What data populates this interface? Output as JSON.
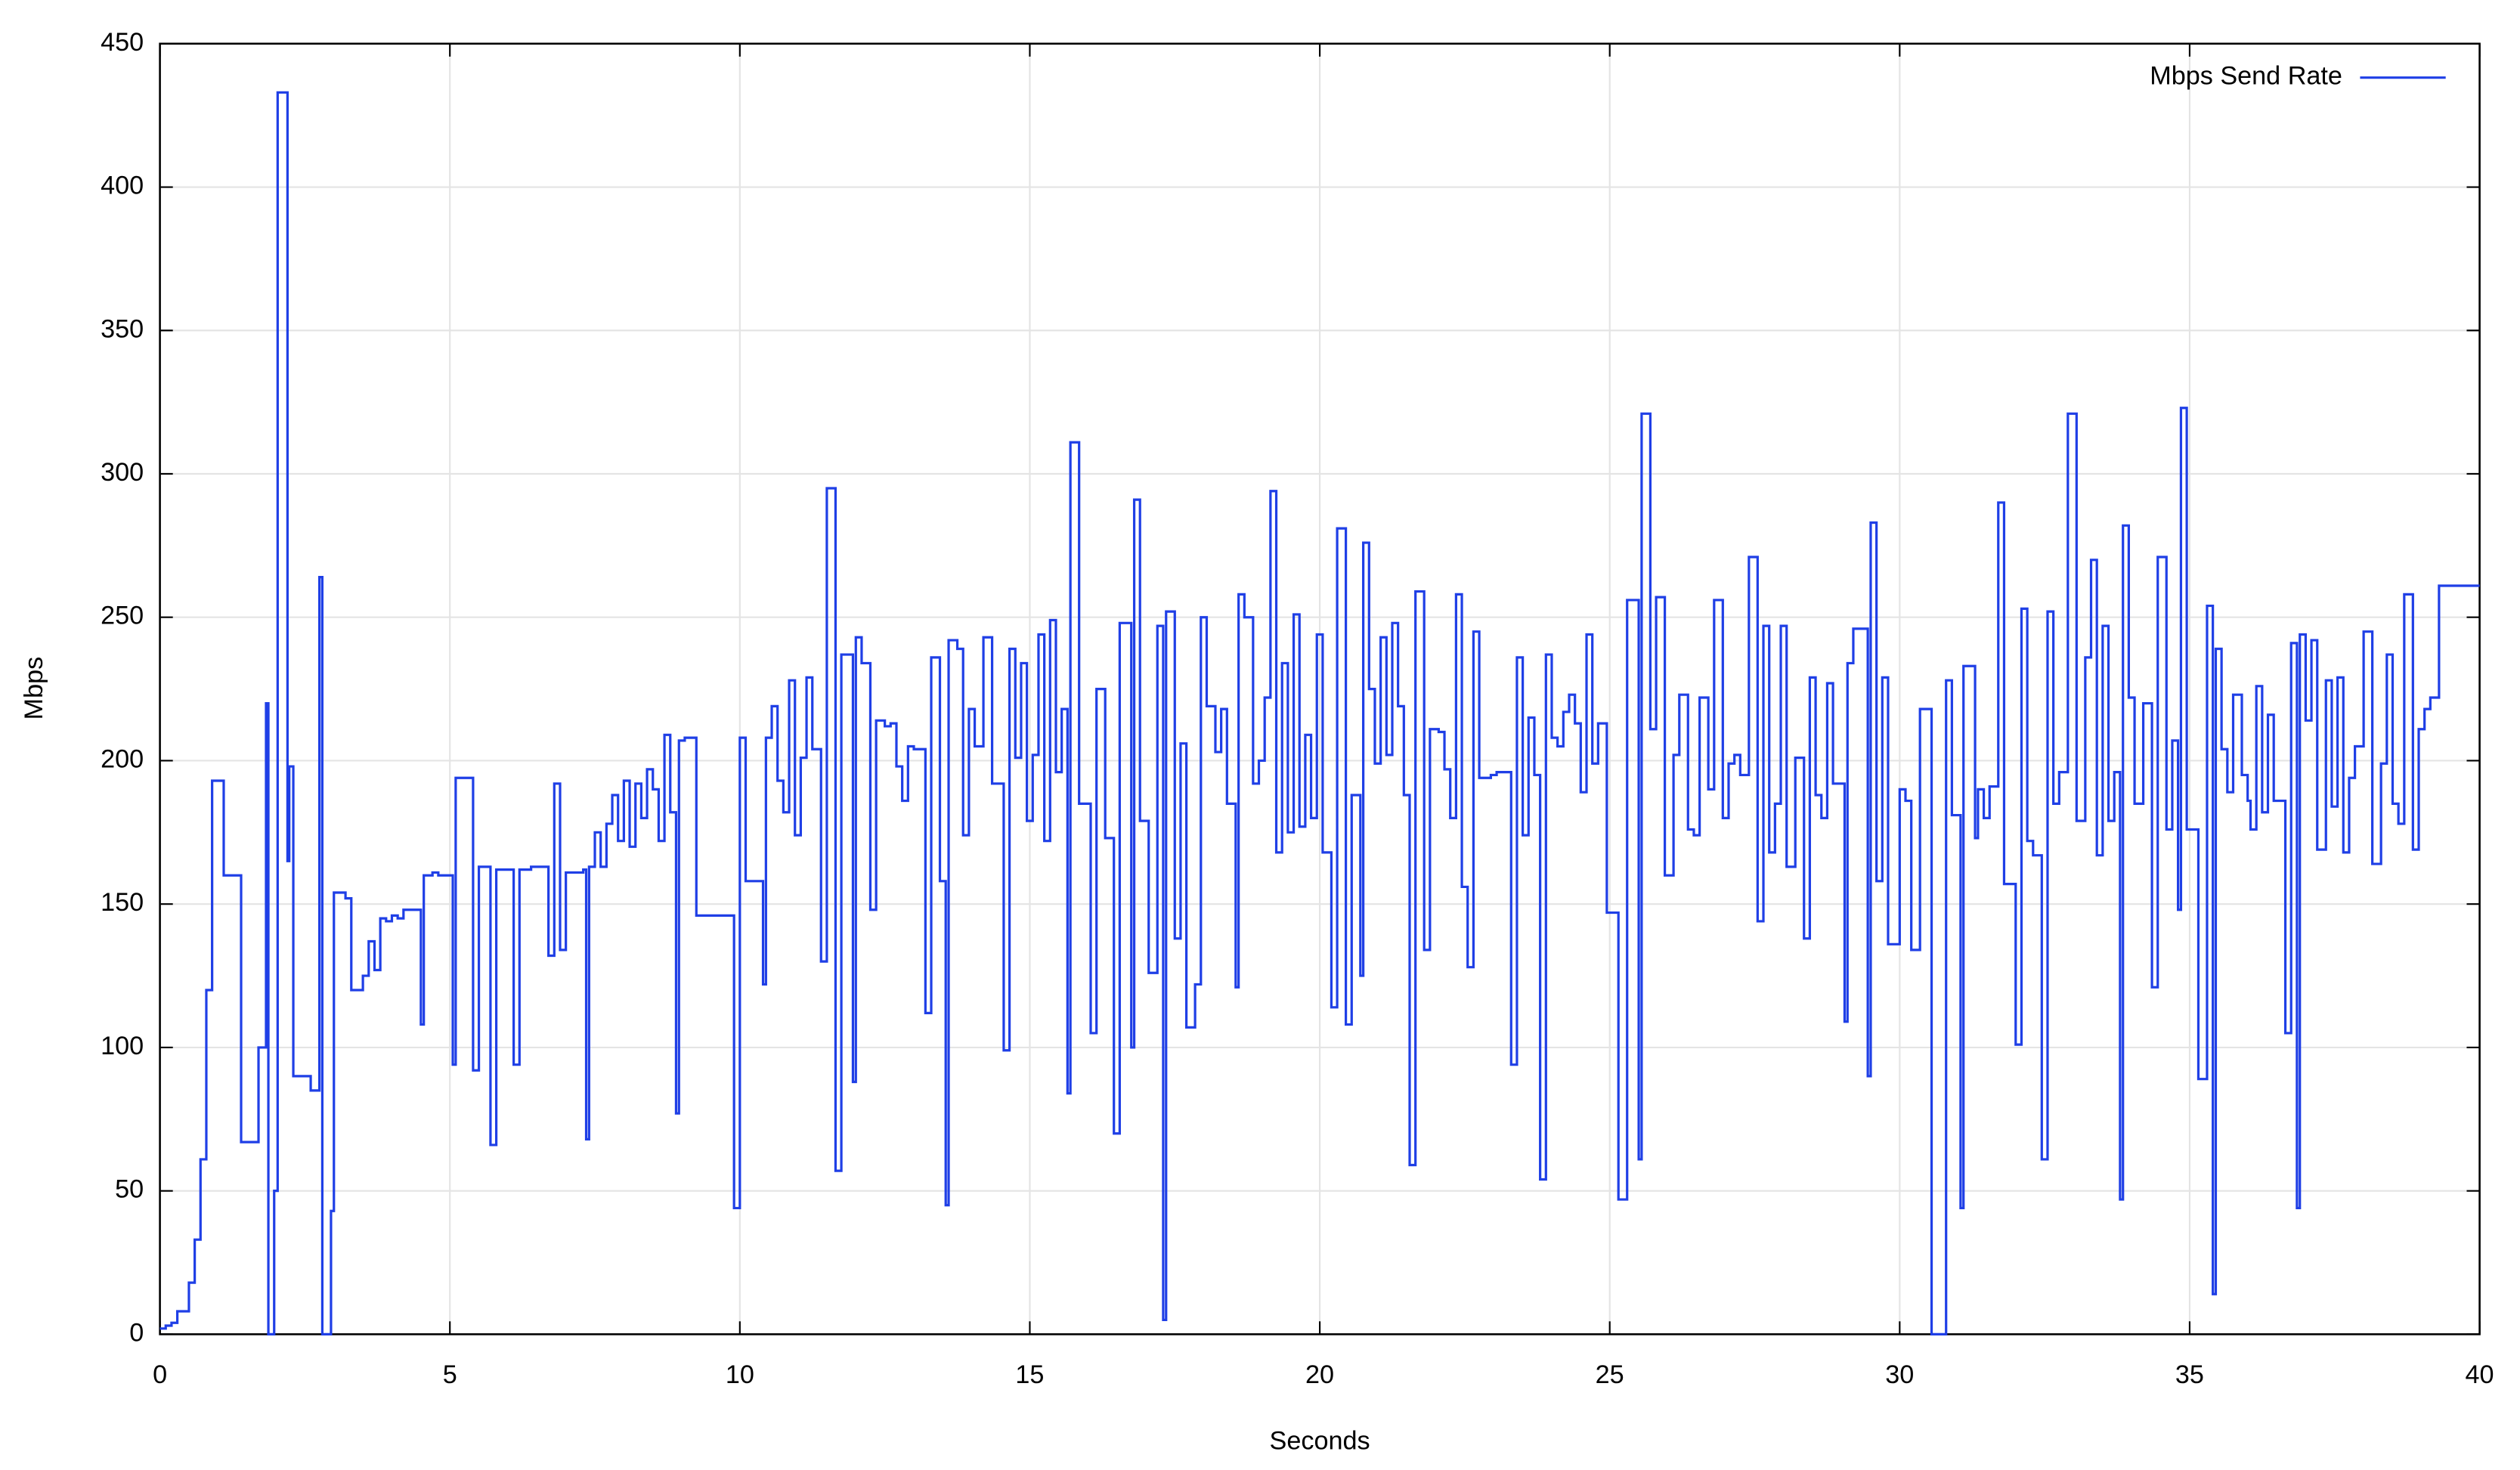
{
  "chart_data": {
    "type": "line",
    "step": true,
    "xlabel": "Seconds",
    "ylabel": "Mbps",
    "xlim": [
      0,
      40
    ],
    "xticks": [
      0,
      5,
      10,
      15,
      20,
      25,
      30,
      35,
      40
    ],
    "ylim": [
      0,
      450
    ],
    "yticks": [
      0,
      50,
      100,
      150,
      200,
      250,
      300,
      350,
      400,
      450
    ],
    "grid": true,
    "legend": "upper right",
    "x": [
      0,
      0.1,
      0.2,
      0.3,
      0.5,
      0.6,
      0.7,
      0.8,
      0.9,
      1.1,
      1.4,
      1.7,
      1.83,
      1.87,
      1.97,
      2.03,
      2.2,
      2.23,
      2.3,
      2.6,
      2.75,
      2.8,
      2.95,
      3.0,
      3.2,
      3.3,
      3.5,
      3.6,
      3.7,
      3.8,
      3.9,
      4.0,
      4.1,
      4.2,
      4.5,
      4.55,
      4.7,
      4.8,
      5.05,
      5.1,
      5.4,
      5.5,
      5.7,
      5.8,
      6.1,
      6.2,
      6.4,
      6.7,
      6.8,
      6.9,
      7.0,
      7.3,
      7.35,
      7.4,
      7.5,
      7.6,
      7.7,
      7.8,
      7.9,
      8.0,
      8.1,
      8.2,
      8.3,
      8.4,
      8.5,
      8.6,
      8.7,
      8.8,
      8.9,
      8.95,
      9.05,
      9.25,
      9.9,
      10.0,
      10.1,
      10.4,
      10.45,
      10.55,
      10.65,
      10.75,
      10.85,
      10.95,
      11.05,
      11.15,
      11.25,
      11.4,
      11.5,
      11.65,
      11.75,
      11.95,
      12.0,
      12.1,
      12.25,
      12.35,
      12.5,
      12.6,
      12.7,
      12.8,
      12.9,
      13.0,
      13.2,
      13.3,
      13.45,
      13.55,
      13.6,
      13.75,
      13.85,
      13.95,
      14.05,
      14.2,
      14.35,
      14.55,
      14.65,
      14.75,
      14.85,
      14.95,
      15.05,
      15.15,
      15.25,
      15.35,
      15.45,
      15.55,
      15.65,
      15.7,
      15.85,
      16.05,
      16.15,
      16.3,
      16.45,
      16.55,
      16.75,
      16.8,
      16.9,
      17.05,
      17.2,
      17.3,
      17.35,
      17.5,
      17.6,
      17.7,
      17.85,
      17.95,
      18.05,
      18.2,
      18.3,
      18.4,
      18.55,
      18.6,
      18.7,
      18.85,
      18.95,
      19.05,
      19.15,
      19.25,
      19.35,
      19.45,
      19.55,
      19.65,
      19.75,
      19.85,
      19.95,
      20.05,
      20.2,
      20.3,
      20.45,
      20.55,
      20.7,
      20.75,
      20.85,
      20.95,
      21.05,
      21.15,
      21.25,
      21.35,
      21.45,
      21.55,
      21.65,
      21.8,
      21.9,
      22.05,
      22.15,
      22.25,
      22.35,
      22.45,
      22.55,
      22.65,
      22.75,
      22.95,
      23.05,
      23.3,
      23.4,
      23.5,
      23.6,
      23.7,
      23.8,
      23.9,
      24.0,
      24.1,
      24.2,
      24.3,
      24.4,
      24.5,
      24.6,
      24.7,
      24.8,
      24.95,
      25.15,
      25.3,
      25.5,
      25.55,
      25.7,
      25.8,
      25.95,
      26.1,
      26.2,
      26.35,
      26.45,
      26.55,
      26.7,
      26.8,
      26.95,
      27.05,
      27.15,
      27.25,
      27.4,
      27.55,
      27.65,
      27.75,
      27.85,
      27.95,
      28.05,
      28.2,
      28.35,
      28.45,
      28.55,
      28.65,
      28.75,
      28.85,
      29.05,
      29.1,
      29.2,
      29.45,
      29.5,
      29.6,
      29.7,
      29.8,
      30.0,
      30.1,
      30.2,
      30.35,
      30.55,
      30.8,
      30.9,
      31.05,
      31.1,
      31.3,
      31.35,
      31.45,
      31.55,
      31.7,
      31.8,
      32.0,
      32.1,
      32.2,
      32.3,
      32.45,
      32.55,
      32.65,
      32.75,
      32.9,
      33.05,
      33.2,
      33.3,
      33.4,
      33.5,
      33.6,
      33.7,
      33.8,
      33.85,
      33.95,
      34.05,
      34.2,
      34.35,
      34.45,
      34.6,
      34.7,
      34.8,
      34.85,
      34.95,
      35.15,
      35.3,
      35.4,
      35.45,
      35.55,
      35.65,
      35.75,
      35.9,
      36.0,
      36.05,
      36.15,
      36.25,
      36.35,
      36.45,
      36.65,
      36.75,
      36.85,
      36.9,
      37.0,
      37.1,
      37.2,
      37.35,
      37.45,
      37.55,
      37.65,
      37.75,
      37.85,
      38.0,
      38.15,
      38.3,
      38.4,
      38.5,
      38.6,
      38.7,
      38.85,
      38.95,
      39.05,
      39.15,
      39.3
    ],
    "series": [
      {
        "name": "Mbps Send Rate",
        "color": "#1f3fe6",
        "values": [
          2,
          3,
          4,
          8,
          18,
          33,
          61,
          120,
          193,
          160,
          67,
          100,
          220,
          0,
          50,
          433,
          165,
          198,
          90,
          85,
          264,
          0,
          43,
          154,
          152,
          120,
          125,
          137,
          127,
          145,
          144,
          146,
          145,
          148,
          108,
          160,
          161,
          160,
          94,
          194,
          92,
          163,
          66,
          162,
          94,
          162,
          163,
          132,
          192,
          134,
          161,
          162,
          68,
          163,
          175,
          163,
          178,
          188,
          172,
          193,
          170,
          192,
          180,
          197,
          190,
          172,
          209,
          182,
          77,
          207,
          208,
          146,
          44,
          208,
          158,
          122,
          208,
          219,
          193,
          182,
          228,
          174,
          201,
          229,
          204,
          130,
          295,
          57,
          237,
          88,
          243,
          234,
          148,
          214,
          212,
          213,
          198,
          186,
          205,
          204,
          112,
          236,
          158,
          45,
          242,
          239,
          174,
          218,
          205,
          243,
          192,
          99,
          239,
          201,
          234,
          179,
          202,
          244,
          172,
          249,
          196,
          218,
          84,
          311,
          185,
          105,
          225,
          173,
          70,
          248,
          100,
          291,
          179,
          126,
          247,
          5,
          252,
          138,
          206,
          107,
          122,
          250,
          219,
          203,
          218,
          185,
          121,
          258,
          250,
          192,
          200,
          222,
          294,
          168,
          234,
          175,
          251,
          177,
          209,
          180,
          244,
          168,
          114,
          281,
          108,
          188,
          125,
          276,
          225,
          199,
          243,
          202,
          248,
          219,
          188,
          59,
          259,
          134,
          211,
          210,
          197,
          180,
          258,
          156,
          128,
          245,
          194,
          195,
          196,
          94,
          236,
          174,
          215,
          195,
          54,
          237,
          208,
          205,
          217,
          223,
          213,
          189,
          244,
          199,
          213,
          147,
          47,
          256,
          61,
          321,
          211,
          257,
          160,
          202,
          223,
          176,
          174,
          222,
          190,
          256,
          180,
          199,
          202,
          195,
          271,
          144,
          247,
          168,
          185,
          247,
          163,
          201,
          138,
          229,
          188,
          180,
          227,
          192,
          109,
          234,
          246,
          90,
          283,
          158,
          229,
          136,
          190,
          186,
          134,
          218,
          0,
          228,
          181,
          44,
          233,
          173,
          190,
          180,
          191,
          290,
          157,
          101,
          253,
          172,
          167,
          61,
          252,
          185,
          196,
          321,
          179,
          236,
          270,
          167,
          247,
          179,
          196,
          47,
          282,
          222,
          185,
          220,
          121,
          271,
          176,
          207,
          148,
          323,
          176,
          89,
          254,
          14,
          239,
          204,
          189,
          223,
          195,
          186,
          176,
          226,
          182,
          216,
          186,
          105,
          241,
          44,
          244,
          214,
          242,
          169,
          228,
          184,
          229,
          168,
          194,
          205,
          245,
          164,
          199,
          237,
          185,
          178,
          258,
          169,
          211,
          218,
          222,
          261
        ]
      }
    ]
  }
}
